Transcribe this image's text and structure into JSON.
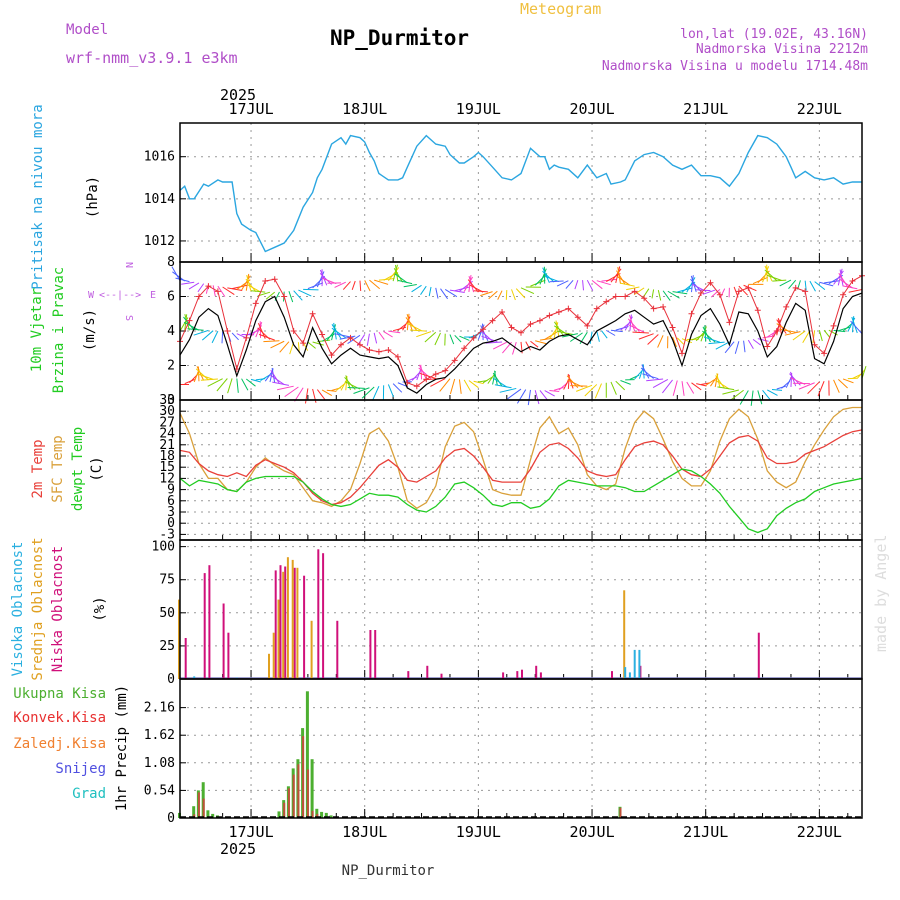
{
  "header": {
    "model_label": "Model",
    "model_name": "wrf-nmm_v3.9.1 e3km",
    "title": "NP_Durmitor",
    "subtitle": "Meteogram",
    "coords": "lon,lat (19.02E, 43.16N)",
    "elevation": "Nadmorska Visina 2212m",
    "model_elevation": "Nadmorska Visina u modelu 1714.48m",
    "year": "2025",
    "footer": "NP_Durmitor",
    "watermark": "made by Angel"
  },
  "colors": {
    "pressure": "#2ba6e0",
    "wind_speed": "#000000",
    "gust": "#e8303a",
    "temp2m": "#e8403a",
    "sfc_temp": "#d9a03a",
    "dewpoint": "#22cc22",
    "high_cloud": "#2bb0e0",
    "mid_cloud": "#e0a020",
    "low_cloud": "#d0107a",
    "total_precip": "#4caf30",
    "conv_precip": "#e83030",
    "frozen": "#f08030",
    "snow": "#5050e0",
    "hail": "#20c0c0",
    "wind_dir_label": "#c060e0"
  },
  "axis": {
    "days": [
      "17JUL",
      "18JUL",
      "19JUL",
      "20JUL",
      "21JUL",
      "22JUL"
    ],
    "first_day_offset_hours": 15,
    "total_hours": 144
  },
  "chart_data": [
    {
      "type": "line",
      "name": "pressure",
      "label": "Pritisak na nivou mora",
      "unit": "(hPa)",
      "ylim": [
        1011,
        1017.6
      ],
      "yticks": [
        1012,
        1014,
        1016
      ],
      "x": [
        0,
        1,
        2,
        3,
        5,
        6,
        8,
        9,
        11,
        12,
        13,
        15,
        16,
        18,
        20,
        22,
        24,
        26,
        28,
        29,
        30,
        32,
        34,
        35,
        36,
        38,
        39,
        40,
        41,
        42,
        44,
        46,
        47,
        48,
        50,
        52,
        54,
        56,
        57,
        58,
        59,
        60,
        62,
        63,
        64,
        66,
        68,
        70,
        72,
        74,
        76,
        77,
        78,
        79,
        80,
        82,
        84,
        86,
        88,
        90,
        91,
        93,
        94,
        96,
        98,
        100,
        102,
        104,
        106,
        108,
        110,
        112,
        114,
        116,
        118,
        120,
        122,
        124,
        126,
        127,
        128,
        129,
        130,
        132,
        134,
        136,
        138,
        140,
        142,
        144
      ],
      "values": [
        1014.4,
        1014.6,
        1014.0,
        1014.0,
        1014.7,
        1014.6,
        1014.9,
        1014.8,
        1014.8,
        1013.3,
        1012.8,
        1012.5,
        1012.4,
        1011.5,
        1011.7,
        1011.9,
        1012.5,
        1013.6,
        1014.3,
        1015.0,
        1015.4,
        1016.6,
        1016.9,
        1016.6,
        1017.0,
        1016.9,
        1016.7,
        1016.2,
        1015.8,
        1015.2,
        1014.9,
        1014.9,
        1015.0,
        1015.5,
        1016.5,
        1017.0,
        1016.6,
        1016.5,
        1016.1,
        1015.9,
        1015.7,
        1015.7,
        1016.0,
        1016.2,
        1016.0,
        1015.5,
        1015.0,
        1014.9,
        1015.2,
        1016.4,
        1016.0,
        1016.0,
        1015.4,
        1015.6,
        1015.5,
        1015.4,
        1015.0,
        1015.6,
        1015.0,
        1015.2,
        1014.7,
        1014.8,
        1014.9,
        1015.8,
        1016.1,
        1016.2,
        1016.0,
        1015.6,
        1015.4,
        1015.6,
        1015.1,
        1015.1,
        1015.0,
        1014.6,
        1015.2,
        1016.2,
        1017.0,
        1016.9,
        1016.6,
        1016.3,
        1016.0,
        1015.5,
        1015.0,
        1015.3,
        1015.0,
        1014.9,
        1015.0,
        1014.7,
        1014.8,
        1014.8
      ]
    },
    {
      "type": "line",
      "name": "wind",
      "label": "10m Vjetar",
      "label2": "Brzina i Pravac",
      "unit": "(m/s)",
      "dir_label_n": "N",
      "dir_label_s": "S",
      "dir_label_w": "W",
      "dir_label_e": "E",
      "ylim": [
        0,
        8
      ],
      "yticks": [
        0,
        2,
        4,
        6,
        8
      ],
      "x": [
        0,
        2,
        4,
        6,
        8,
        10,
        12,
        14,
        16,
        18,
        20,
        22,
        24,
        26,
        28,
        30,
        32,
        34,
        36,
        38,
        40,
        42,
        44,
        46,
        48,
        50,
        52,
        54,
        56,
        58,
        60,
        62,
        64,
        66,
        68,
        70,
        72,
        74,
        76,
        78,
        80,
        82,
        84,
        86,
        88,
        90,
        92,
        94,
        96,
        98,
        100,
        102,
        104,
        106,
        108,
        110,
        112,
        114,
        116,
        118,
        120,
        122,
        124,
        126,
        128,
        130,
        132,
        134,
        136,
        138,
        140,
        142,
        144
      ],
      "series": [
        {
          "name": "speed",
          "values": [
            2.6,
            3.5,
            4.8,
            5.3,
            4.9,
            3.2,
            1.4,
            2.9,
            4.6,
            5.7,
            6.0,
            4.8,
            3.2,
            2.5,
            4.2,
            3.0,
            2.1,
            2.6,
            3.0,
            2.6,
            2.5,
            2.4,
            2.5,
            2.0,
            0.7,
            0.4,
            0.9,
            1.2,
            1.3,
            1.8,
            2.4,
            3.0,
            3.3,
            3.4,
            3.6,
            3.2,
            2.8,
            3.1,
            2.9,
            3.4,
            3.7,
            3.8,
            3.5,
            3.2,
            4.0,
            4.3,
            4.6,
            5.0,
            5.2,
            4.8,
            4.4,
            4.6,
            3.5,
            2.0,
            3.8,
            4.9,
            5.3,
            4.4,
            3.2,
            5.1,
            5.0,
            4.0,
            2.5,
            3.1,
            4.5,
            5.6,
            5.2,
            2.4,
            2.1,
            3.4,
            5.3,
            6.0,
            6.2
          ]
        },
        {
          "name": "gust",
          "values": [
            3.4,
            4.6,
            6.0,
            6.6,
            6.3,
            4.0,
            1.8,
            3.6,
            5.6,
            6.9,
            7.0,
            6.0,
            4.0,
            3.3,
            5.0,
            3.8,
            2.6,
            3.2,
            3.6,
            3.2,
            2.9,
            2.8,
            2.9,
            2.5,
            1.0,
            0.8,
            1.2,
            1.5,
            1.7,
            2.3,
            3.0,
            3.6,
            4.1,
            4.6,
            5.1,
            4.2,
            3.9,
            4.4,
            4.6,
            4.9,
            5.1,
            5.3,
            4.8,
            4.3,
            5.3,
            5.7,
            6.0,
            6.0,
            6.3,
            5.9,
            5.3,
            5.4,
            4.2,
            2.7,
            5.0,
            6.2,
            6.8,
            6.1,
            4.5,
            6.3,
            6.5,
            5.2,
            3.1,
            4.0,
            5.4,
            6.5,
            6.3,
            3.2,
            2.7,
            4.3,
            6.1,
            6.9,
            7.2
          ]
        }
      ]
    },
    {
      "type": "line",
      "name": "temperature",
      "label1": "2m Temp",
      "label2": "SFC Temp",
      "label3": "dewpt Temp",
      "unit": "(C)",
      "ylim": [
        -4.5,
        33
      ],
      "yticks": [
        -3,
        0,
        3,
        6,
        9,
        12,
        15,
        18,
        21,
        24,
        27,
        30,
        33
      ],
      "x": [
        0,
        2,
        4,
        6,
        8,
        10,
        12,
        14,
        16,
        18,
        20,
        22,
        24,
        26,
        28,
        30,
        32,
        34,
        36,
        38,
        40,
        42,
        44,
        46,
        48,
        50,
        52,
        54,
        56,
        58,
        60,
        62,
        64,
        66,
        68,
        70,
        72,
        74,
        76,
        78,
        80,
        82,
        84,
        86,
        88,
        90,
        92,
        94,
        96,
        98,
        100,
        102,
        104,
        106,
        108,
        110,
        112,
        114,
        116,
        118,
        120,
        122,
        124,
        126,
        128,
        130,
        132,
        134,
        136,
        138,
        140,
        142,
        144
      ],
      "series": [
        {
          "name": "2m Temp",
          "values": [
            19.5,
            19.0,
            16.0,
            14.0,
            13.0,
            12.5,
            13.5,
            12.5,
            15.5,
            17.0,
            16.0,
            15.0,
            13.5,
            11.0,
            8.0,
            6.0,
            5.0,
            5.5,
            7.0,
            9.5,
            12.5,
            15.5,
            17.0,
            15.0,
            11.5,
            11.0,
            12.5,
            14.0,
            17.5,
            19.5,
            20.0,
            18.0,
            15.0,
            11.5,
            11.0,
            11.0,
            11.0,
            14.5,
            19.0,
            21.0,
            21.5,
            20.0,
            17.5,
            14.0,
            13.0,
            12.5,
            13.0,
            17.0,
            20.5,
            21.5,
            22.0,
            21.0,
            18.0,
            14.5,
            13.0,
            12.5,
            14.5,
            18.0,
            21.5,
            23.0,
            23.5,
            22.0,
            17.5,
            16.0,
            16.0,
            16.5,
            18.5,
            19.5,
            20.5,
            22.0,
            23.5,
            24.5,
            25.0
          ]
        },
        {
          "name": "SFC Temp",
          "values": [
            29.5,
            24.0,
            16.0,
            12.0,
            12.0,
            9.0,
            8.5,
            11.0,
            15.0,
            17.5,
            15.5,
            14.0,
            13.0,
            9.5,
            6.0,
            5.5,
            4.5,
            6.0,
            9.0,
            16.0,
            24.0,
            25.5,
            22.0,
            15.0,
            6.0,
            4.0,
            5.5,
            10.0,
            20.5,
            26.0,
            27.0,
            24.5,
            17.0,
            9.0,
            8.0,
            7.5,
            7.5,
            17.0,
            25.5,
            28.5,
            24.0,
            25.5,
            21.0,
            13.0,
            10.0,
            9.0,
            10.5,
            20.0,
            27.0,
            30.0,
            28.0,
            22.5,
            16.5,
            12.0,
            10.0,
            10.0,
            14.0,
            22.0,
            28.0,
            30.5,
            28.5,
            22.5,
            14.0,
            11.0,
            9.5,
            11.0,
            16.5,
            21.0,
            25.0,
            28.5,
            30.5,
            31.0,
            31.0
          ]
        },
        {
          "name": "dewpt Temp",
          "values": [
            12.0,
            10.0,
            11.5,
            11.0,
            10.5,
            9.0,
            8.5,
            11.0,
            12.0,
            12.5,
            12.5,
            12.5,
            12.5,
            11.0,
            8.5,
            6.5,
            5.0,
            4.5,
            5.0,
            6.5,
            8.0,
            7.5,
            7.5,
            7.0,
            5.0,
            3.5,
            3.0,
            4.5,
            7.0,
            10.5,
            11.0,
            9.5,
            7.5,
            5.0,
            4.5,
            5.5,
            5.5,
            4.0,
            4.5,
            6.5,
            10.0,
            11.5,
            11.0,
            10.5,
            10.0,
            10.0,
            10.0,
            9.5,
            8.5,
            8.5,
            10.0,
            11.5,
            13.0,
            14.5,
            14.0,
            12.5,
            10.5,
            8.0,
            4.5,
            1.5,
            -1.5,
            -2.5,
            -1.5,
            2.0,
            4.0,
            5.5,
            6.5,
            8.5,
            9.5,
            10.5,
            11.0,
            11.5,
            12.0
          ]
        }
      ]
    },
    {
      "type": "bar",
      "name": "clouds",
      "label1": "Visoka Oblacnost",
      "label2": "Srednja Oblacnost",
      "label3": "Niska Oblacnost",
      "unit": "(%)",
      "ylim": [
        0,
        105
      ],
      "yticks": [
        0,
        25,
        50,
        75,
        100
      ],
      "ytick_labels": [
        "0",
        "25",
        "50",
        "75",
        "100"
      ],
      "series": [
        {
          "name": "low",
          "points": [
            [
              1,
              31
            ],
            [
              5,
              80
            ],
            [
              6,
              86
            ],
            [
              9,
              57
            ],
            [
              10,
              35
            ],
            [
              20,
              82
            ],
            [
              21,
              86
            ],
            [
              22,
              85
            ],
            [
              24,
              84
            ],
            [
              26,
              78
            ],
            [
              29,
              98
            ],
            [
              30,
              95
            ],
            [
              33,
              44
            ],
            [
              40,
              37
            ],
            [
              41,
              37
            ],
            [
              48,
              6
            ],
            [
              52,
              10
            ],
            [
              55,
              4
            ],
            [
              68,
              5
            ],
            [
              71,
              6
            ],
            [
              72,
              7
            ],
            [
              75,
              10
            ],
            [
              76,
              5
            ],
            [
              91,
              6
            ],
            [
              97,
              10
            ],
            [
              122,
              35
            ]
          ]
        },
        {
          "name": "mid",
          "points": [
            [
              0,
              60
            ],
            [
              19,
              19
            ],
            [
              20,
              35
            ],
            [
              21,
              60
            ],
            [
              22,
              81
            ],
            [
              23,
              92
            ],
            [
              24,
              90
            ],
            [
              25,
              84
            ],
            [
              28,
              44
            ],
            [
              94,
              67
            ]
          ]
        },
        {
          "name": "high",
          "points": [
            [
              3,
              2
            ],
            [
              12,
              1
            ],
            [
              94,
              9
            ],
            [
              95,
              5
            ],
            [
              96,
              22
            ],
            [
              97,
              22
            ]
          ]
        }
      ]
    },
    {
      "type": "bar",
      "name": "precip",
      "label1": "Ukupna Kisa",
      "label2": "Konvek.Kisa",
      "label3": "Zaledj.Kisa",
      "label4": "Snijeg",
      "label5": "Grad",
      "unit": "1hr Precip (mm)",
      "ylim": [
        0,
        2.72
      ],
      "yticks": [
        0,
        0.54,
        1.08,
        1.62,
        2.16
      ],
      "ytick_labels": [
        "0",
        "0.54",
        "1.08",
        "1.62",
        "2.16"
      ],
      "series": [
        {
          "name": "total",
          "points": [
            [
              0,
              0.1
            ],
            [
              3,
              0.23
            ],
            [
              4,
              0.54
            ],
            [
              5,
              0.7
            ],
            [
              6,
              0.15
            ],
            [
              7,
              0.08
            ],
            [
              8,
              0.05
            ],
            [
              21,
              0.13
            ],
            [
              22,
              0.35
            ],
            [
              23,
              0.62
            ],
            [
              24,
              0.97
            ],
            [
              25,
              1.15
            ],
            [
              26,
              1.76
            ],
            [
              27,
              2.48
            ],
            [
              28,
              1.15
            ],
            [
              29,
              0.18
            ],
            [
              30,
              0.12
            ],
            [
              31,
              0.1
            ],
            [
              32,
              0.05
            ],
            [
              33,
              0.03
            ],
            [
              93,
              0.22
            ]
          ]
        },
        {
          "name": "convective",
          "points": [
            [
              3,
              0.07
            ],
            [
              4,
              0.5
            ],
            [
              5,
              0.38
            ],
            [
              22,
              0.3
            ],
            [
              23,
              0.58
            ],
            [
              24,
              0.85
            ],
            [
              25,
              1.05
            ],
            [
              26,
              1.6
            ],
            [
              27,
              0.95
            ],
            [
              28,
              0.14
            ],
            [
              29,
              0.08
            ],
            [
              93,
              0.2
            ]
          ]
        }
      ]
    }
  ]
}
